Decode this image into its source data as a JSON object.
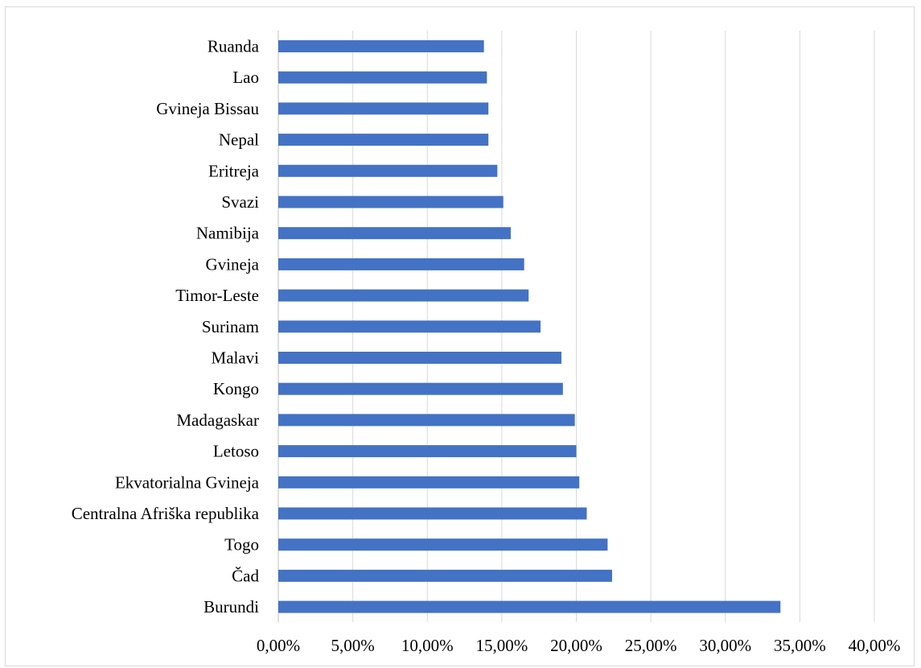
{
  "chart_data": {
    "type": "bar",
    "orientation": "horizontal",
    "categories": [
      "Ruanda",
      "Lao",
      "Gvineja Bissau",
      "Nepal",
      "Eritreja",
      "Svazi",
      "Namibija",
      "Gvineja",
      "Timor-Leste",
      "Surinam",
      "Malavi",
      "Kongo",
      "Madagaskar",
      "Letoso",
      "Ekvatorialna Gvineja",
      "Centralna Afriška republika",
      "Togo",
      "Čad",
      "Burundi"
    ],
    "values": [
      13.8,
      14.0,
      14.1,
      14.1,
      14.7,
      15.1,
      15.6,
      16.5,
      16.8,
      17.6,
      19.0,
      19.1,
      19.9,
      20.0,
      20.2,
      20.7,
      22.1,
      22.4,
      33.7
    ],
    "xlim": [
      0,
      40
    ],
    "x_ticks": [
      "0,00%",
      "5,00%",
      "10,00%",
      "15,00%",
      "20,00%",
      "25,00%",
      "30,00%",
      "35,00%",
      "40,00%"
    ],
    "x_tick_values": [
      0,
      5,
      10,
      15,
      20,
      25,
      30,
      35,
      40
    ],
    "grid": "vertical",
    "legend": "none",
    "bar_color": "#4472c4",
    "grid_color": "#d9d9d9"
  }
}
